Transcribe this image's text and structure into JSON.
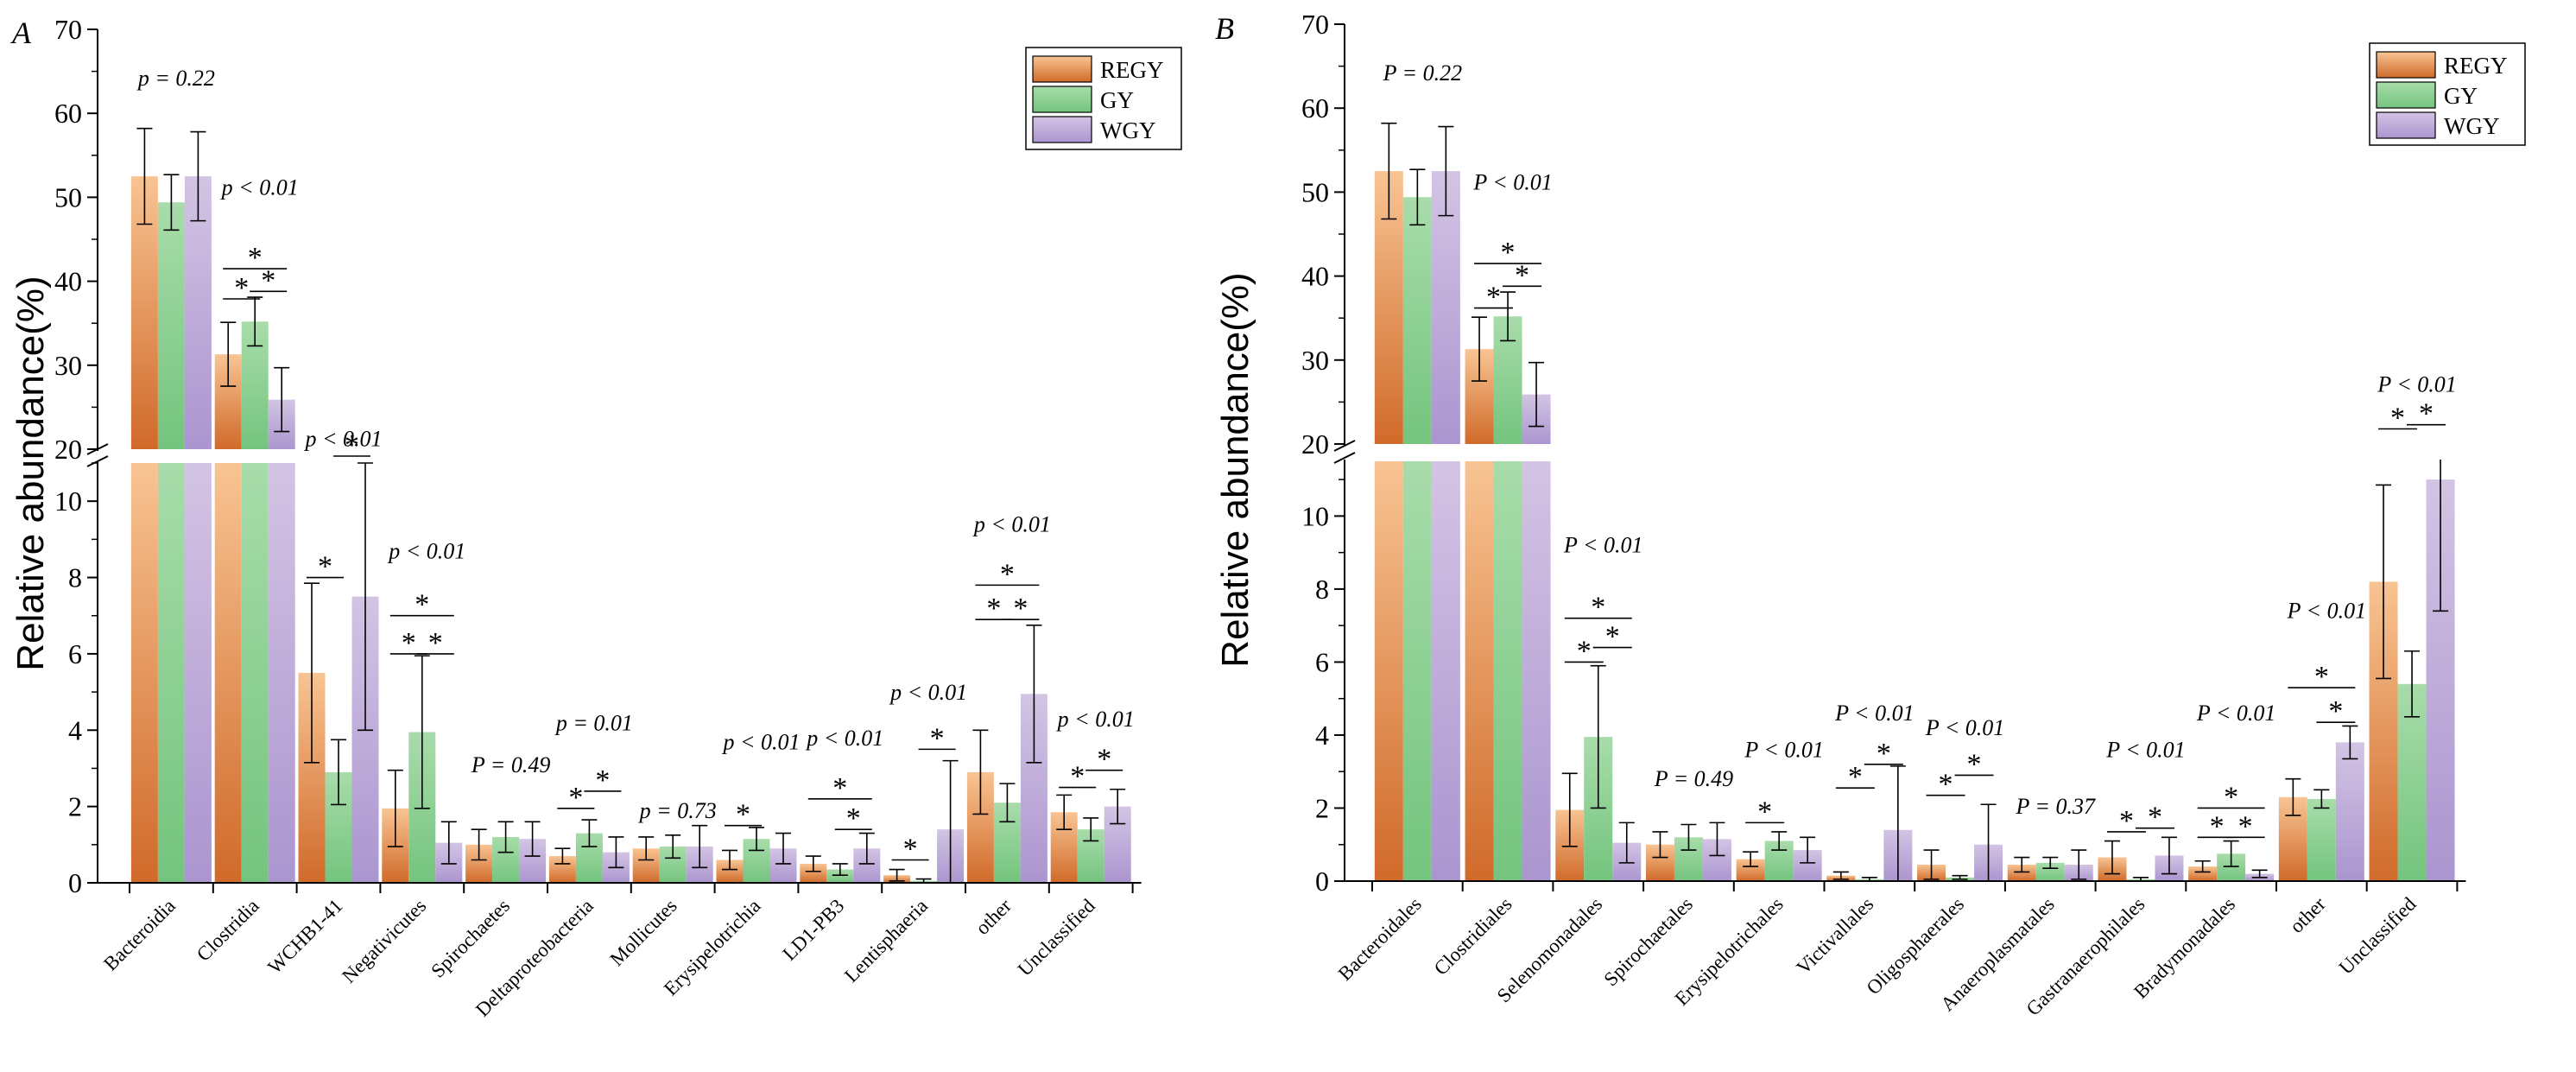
{
  "colors": {
    "REGY": [
      "#f8c493",
      "#d06a2a"
    ],
    "GY": [
      "#a8dcaa",
      "#74c47e"
    ],
    "WGY": [
      "#d3c4e4",
      "#ab95cf"
    ]
  },
  "legend": [
    "REGY",
    "GY",
    "WGY"
  ],
  "chart_data": [
    {
      "panel": "A",
      "type": "bar",
      "ylabel": "Relative abundance(%)",
      "ylim_low": [
        0,
        11
      ],
      "ylim_high": [
        20,
        70
      ],
      "low_ticks": [
        0,
        2,
        4,
        6,
        8,
        10
      ],
      "high_ticks": [
        20,
        30,
        40,
        50,
        60,
        70
      ],
      "categories": [
        "Bacteroidia",
        "Clostridia",
        "WCHB1-41",
        "Negativicutes",
        "Spirochaetes",
        "Deltaproteobacteria",
        "Mollicutes",
        "Erysipelotrichia",
        "LD1-PB3",
        "Lentisphaeria",
        "other",
        "Unclassified"
      ],
      "series": [
        {
          "name": "REGY",
          "values": [
            52.5,
            31.3,
            5.5,
            1.95,
            1.0,
            0.7,
            0.9,
            0.6,
            0.5,
            0.2,
            2.9,
            1.85
          ],
          "errors": [
            5.7,
            3.8,
            2.35,
            1.0,
            0.4,
            0.2,
            0.3,
            0.25,
            0.2,
            0.15,
            1.1,
            0.45
          ]
        },
        {
          "name": "GY",
          "values": [
            49.4,
            35.2,
            2.9,
            3.95,
            1.2,
            1.3,
            0.95,
            1.15,
            0.35,
            0.05,
            2.1,
            1.4
          ],
          "errors": [
            3.3,
            2.9,
            0.85,
            2.0,
            0.4,
            0.35,
            0.3,
            0.3,
            0.15,
            0.05,
            0.5,
            0.3
          ]
        },
        {
          "name": "WGY",
          "values": [
            52.5,
            25.9,
            7.5,
            1.05,
            1.15,
            0.8,
            0.95,
            0.9,
            0.9,
            1.4,
            4.95,
            2.0
          ],
          "errors": [
            5.3,
            3.8,
            3.5,
            0.55,
            0.45,
            0.4,
            0.55,
            0.4,
            0.4,
            1.8,
            1.8,
            0.45
          ]
        }
      ],
      "annotations": [
        {
          "cat": 0,
          "text": "p = 0.22",
          "value": 63.3
        },
        {
          "cat": 1,
          "text": "p < 0.01",
          "value": 50.3
        },
        {
          "cat": 2,
          "text": "p < 0.01",
          "value": 20.35
        },
        {
          "cat": 3,
          "text": "p < 0.01",
          "value": 8.5
        },
        {
          "cat": 4,
          "text": "P = 0.49",
          "value": 2.9
        },
        {
          "cat": 5,
          "text": "p = 0.01",
          "value": 4.0
        },
        {
          "cat": 6,
          "text": "p = 0.73",
          "value": 1.7
        },
        {
          "cat": 7,
          "text": "p < 0.01",
          "value": 3.5
        },
        {
          "cat": 8,
          "text": "p < 0.01",
          "value": 3.6
        },
        {
          "cat": 9,
          "text": "p < 0.01",
          "value": 4.8
        },
        {
          "cat": 10,
          "text": "p < 0.01",
          "value": 9.2
        },
        {
          "cat": 11,
          "text": "p < 0.01",
          "value": 4.1
        }
      ],
      "significance": [
        {
          "cat": 1,
          "a": 0,
          "b": 1,
          "value": 37.9
        },
        {
          "cat": 1,
          "a": 1,
          "b": 2,
          "value": 38.8
        },
        {
          "cat": 1,
          "a": 0,
          "b": 2,
          "value": 41.5
        },
        {
          "cat": 2,
          "a": 0,
          "b": 1,
          "value": 8.0
        },
        {
          "cat": 2,
          "a": 1,
          "b": 2,
          "value": 11.3
        },
        {
          "cat": 3,
          "a": 0,
          "b": 1,
          "value": 6.0
        },
        {
          "cat": 3,
          "a": 1,
          "b": 2,
          "value": 6.0
        },
        {
          "cat": 3,
          "a": 0,
          "b": 2,
          "value": 7.0
        },
        {
          "cat": 5,
          "a": 0,
          "b": 1,
          "value": 1.95
        },
        {
          "cat": 5,
          "a": 1,
          "b": 2,
          "value": 2.4
        },
        {
          "cat": 7,
          "a": 0,
          "b": 1,
          "value": 1.5
        },
        {
          "cat": 8,
          "a": 0,
          "b": 2,
          "value": 2.2
        },
        {
          "cat": 8,
          "a": 1,
          "b": 2,
          "value": 1.4
        },
        {
          "cat": 9,
          "a": 0,
          "b": 1,
          "value": 0.6
        },
        {
          "cat": 9,
          "a": 1,
          "b": 2,
          "value": 3.5
        },
        {
          "cat": 10,
          "a": 0,
          "b": 1,
          "value": 6.9
        },
        {
          "cat": 10,
          "a": 1,
          "b": 2,
          "value": 6.9
        },
        {
          "cat": 10,
          "a": 0,
          "b": 2,
          "value": 7.8
        },
        {
          "cat": 11,
          "a": 0,
          "b": 1,
          "value": 2.5
        },
        {
          "cat": 11,
          "a": 1,
          "b": 2,
          "value": 2.95
        }
      ]
    },
    {
      "panel": "B",
      "type": "bar",
      "ylabel": "Relative abundance(%)",
      "ylim_low": [
        0,
        11.5
      ],
      "ylim_high": [
        20,
        70
      ],
      "low_ticks": [
        0,
        2,
        4,
        6,
        8,
        10
      ],
      "high_ticks": [
        20,
        30,
        40,
        50,
        60,
        70
      ],
      "categories": [
        "Bacteroidales",
        "Clostridiales",
        "Selenomonadales",
        "Spirochaetales",
        "Erysipelotrichales",
        "Victivallales",
        "Oligosphaerales",
        "Anaeroplasmatales",
        "Gastranaerophilales",
        "Bradymonadales",
        "other",
        "Unclassified"
      ],
      "series": [
        {
          "name": "REGY",
          "values": [
            52.5,
            31.3,
            1.95,
            1.0,
            0.6,
            0.15,
            0.45,
            0.45,
            0.65,
            0.4,
            2.3,
            8.2
          ],
          "errors": [
            5.7,
            3.8,
            1.0,
            0.35,
            0.2,
            0.1,
            0.4,
            0.2,
            0.45,
            0.15,
            0.5,
            2.65
          ]
        },
        {
          "name": "GY",
          "values": [
            49.4,
            35.2,
            3.95,
            1.2,
            1.1,
            0.05,
            0.1,
            0.5,
            0.05,
            0.75,
            2.25,
            5.4
          ],
          "errors": [
            3.3,
            2.9,
            1.95,
            0.35,
            0.25,
            0.05,
            0.05,
            0.15,
            0.05,
            0.35,
            0.25,
            0.9
          ]
        },
        {
          "name": "WGY",
          "values": [
            52.5,
            25.9,
            1.05,
            1.15,
            0.85,
            1.4,
            1.0,
            0.45,
            0.7,
            0.2,
            3.8,
            11.0
          ],
          "errors": [
            5.3,
            3.8,
            0.55,
            0.45,
            0.35,
            1.75,
            1.1,
            0.4,
            0.5,
            0.1,
            0.45,
            3.6
          ]
        }
      ],
      "annotations": [
        {
          "cat": 0,
          "text": "P = 0.22",
          "value": 63.3
        },
        {
          "cat": 1,
          "text": "P < 0.01",
          "value": 50.3
        },
        {
          "cat": 2,
          "text": "P < 0.01",
          "value": 9.0
        },
        {
          "cat": 3,
          "text": "P = 0.49",
          "value": 2.6
        },
        {
          "cat": 4,
          "text": "P < 0.01",
          "value": 3.4
        },
        {
          "cat": 5,
          "text": "P < 0.01",
          "value": 4.4
        },
        {
          "cat": 6,
          "text": "P < 0.01",
          "value": 4.0
        },
        {
          "cat": 7,
          "text": "P = 0.37",
          "value": 1.85
        },
        {
          "cat": 8,
          "text": "P < 0.01",
          "value": 3.4
        },
        {
          "cat": 9,
          "text": "P < 0.01",
          "value": 4.4
        },
        {
          "cat": 10,
          "text": "P < 0.01",
          "value": 7.2
        },
        {
          "cat": 11,
          "text": "P < 0.01",
          "value": 26.2
        }
      ],
      "significance": [
        {
          "cat": 1,
          "a": 0,
          "b": 1,
          "value": 36.2
        },
        {
          "cat": 1,
          "a": 1,
          "b": 2,
          "value": 38.8
        },
        {
          "cat": 1,
          "a": 0,
          "b": 2,
          "value": 41.5
        },
        {
          "cat": 2,
          "a": 0,
          "b": 1,
          "value": 6.0
        },
        {
          "cat": 2,
          "a": 1,
          "b": 2,
          "value": 6.4
        },
        {
          "cat": 2,
          "a": 0,
          "b": 2,
          "value": 7.2
        },
        {
          "cat": 4,
          "a": 0,
          "b": 1,
          "value": 1.6
        },
        {
          "cat": 5,
          "a": 0,
          "b": 1,
          "value": 2.55
        },
        {
          "cat": 5,
          "a": 1,
          "b": 2,
          "value": 3.2
        },
        {
          "cat": 6,
          "a": 0,
          "b": 1,
          "value": 2.35
        },
        {
          "cat": 6,
          "a": 1,
          "b": 2,
          "value": 2.9
        },
        {
          "cat": 8,
          "a": 0,
          "b": 1,
          "value": 1.35
        },
        {
          "cat": 8,
          "a": 1,
          "b": 2,
          "value": 1.45
        },
        {
          "cat": 9,
          "a": 0,
          "b": 1,
          "value": 1.2
        },
        {
          "cat": 9,
          "a": 1,
          "b": 2,
          "value": 1.2
        },
        {
          "cat": 9,
          "a": 0,
          "b": 2,
          "value": 2.0
        },
        {
          "cat": 10,
          "a": 1,
          "b": 2,
          "value": 4.35
        },
        {
          "cat": 10,
          "a": 0,
          "b": 2,
          "value": 5.3
        },
        {
          "cat": 11,
          "a": 0,
          "b": 1,
          "value": 21.8
        },
        {
          "cat": 11,
          "a": 1,
          "b": 2,
          "value": 22.3
        }
      ]
    }
  ]
}
